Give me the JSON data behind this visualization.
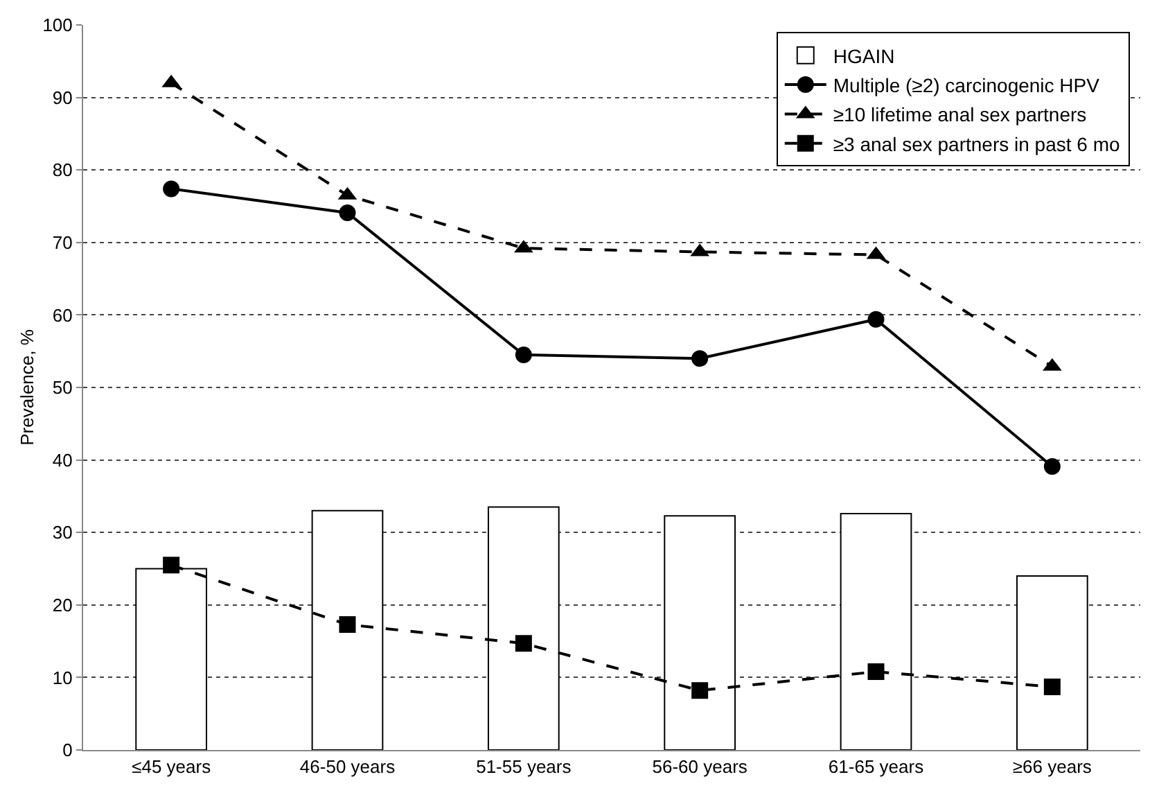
{
  "chart_data": {
    "type": "bar",
    "ylabel": "Prevalence, %",
    "categories": [
      "≤45 years",
      "46-50 years",
      "51-55 years",
      "56-60 years",
      "61-65 years",
      "≥66 years"
    ],
    "ylim": [
      0,
      100
    ],
    "yticks": [
      0,
      10,
      20,
      30,
      40,
      50,
      60,
      70,
      80,
      90,
      100
    ],
    "grid": "y",
    "legend": "top right",
    "series": [
      {
        "name": "HGAIN",
        "color": "#ffffff",
        "values": [
          25.0,
          33.0,
          33.5,
          32.3,
          32.6,
          24.0
        ]
      },
      {
        "name": "Multiple (≥2) carcinogenic HPV",
        "type": "line",
        "color": "#000000",
        "marker": "circle",
        "line_style": "solid",
        "values": [
          77.4,
          74.1,
          54.5,
          54.0,
          59.4,
          39.1
        ]
      },
      {
        "name": "≥10 lifetime anal sex partners",
        "type": "line",
        "color": "#000000",
        "marker": "triangle",
        "line_style": "dashed",
        "values": [
          92.0,
          76.5,
          69.2,
          68.7,
          68.3,
          52.9
        ]
      },
      {
        "name": "≥3 anal sex partners in past 6 mo",
        "type": "line",
        "color": "#000000",
        "marker": "square",
        "line_style": "dashed",
        "values": [
          25.5,
          17.3,
          14.7,
          8.2,
          10.8,
          8.7
        ]
      }
    ]
  }
}
